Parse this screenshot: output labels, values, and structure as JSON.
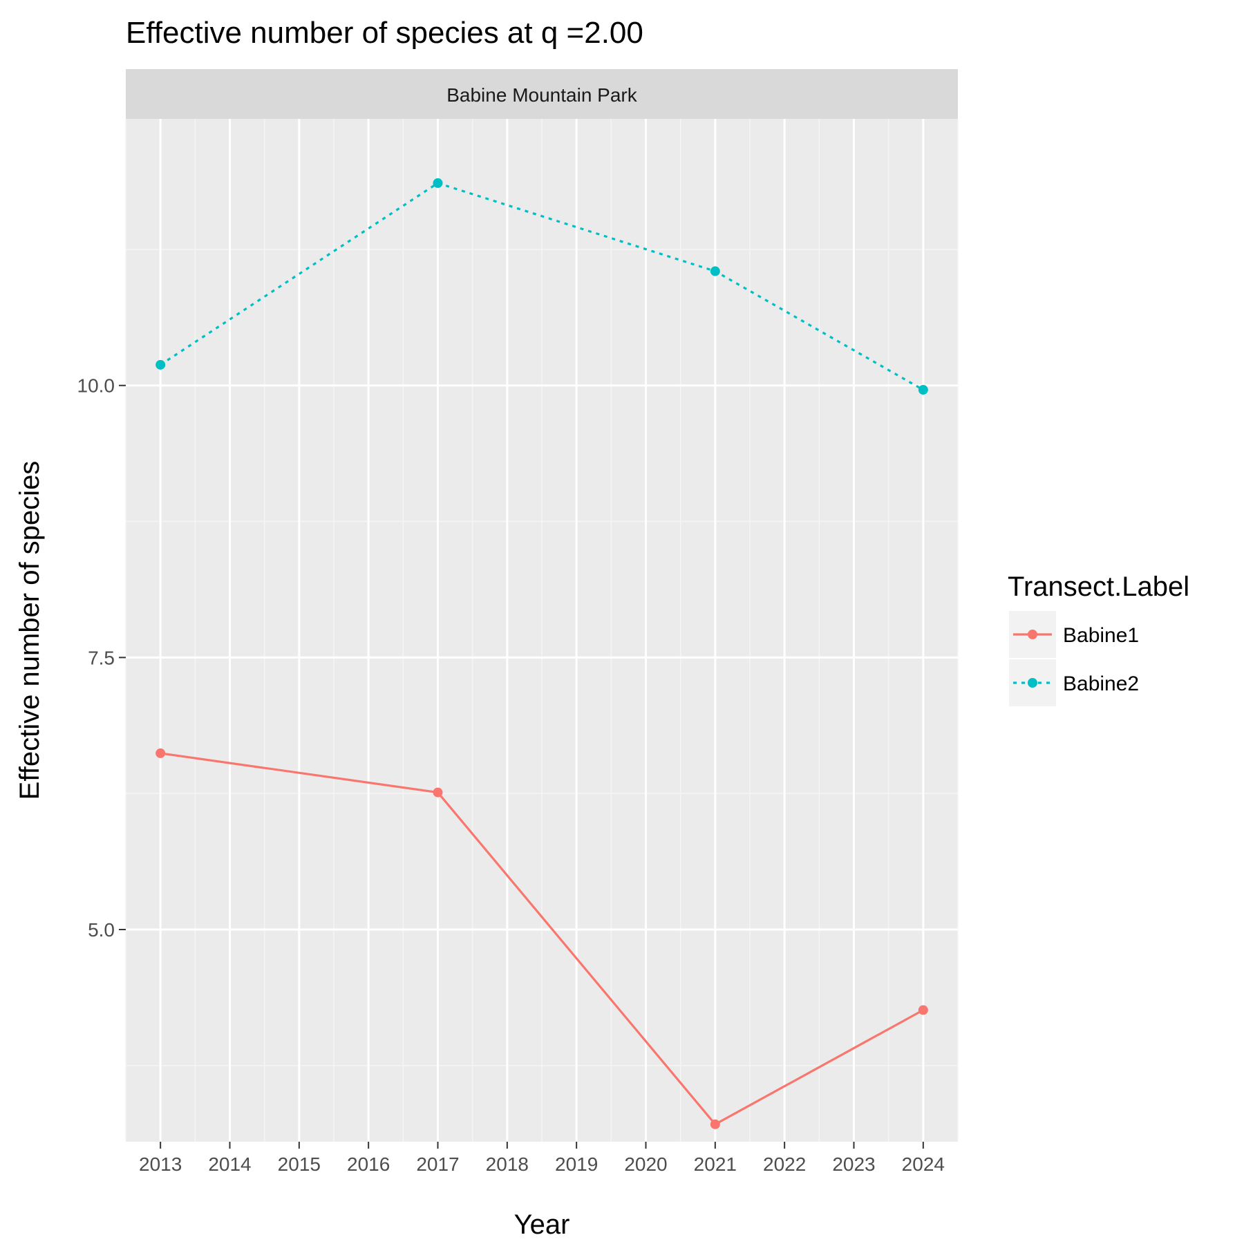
{
  "chart_data": {
    "type": "line",
    "title": "Effective number of species at q =2.00",
    "facet_label": "Babine Mountain Park",
    "xlabel": "Year",
    "ylabel": "Effective number of species",
    "x_ticks": [
      "2013",
      "2014",
      "2015",
      "2016",
      "2017",
      "2018",
      "2019",
      "2020",
      "2021",
      "2022",
      "2023",
      "2024"
    ],
    "y_ticks": [
      "5.0",
      "7.5",
      "10.0"
    ],
    "xlim": [
      2012.5,
      2024.5
    ],
    "ylim": [
      3.05,
      12.45
    ],
    "grid": true,
    "legend_title": "Transect.Label",
    "legend_position": "right",
    "series": [
      {
        "name": "Babine1",
        "color": "#F8766D",
        "line_style": "solid",
        "x": [
          2013,
          2017,
          2021,
          2024
        ],
        "y": [
          6.62,
          6.26,
          3.21,
          4.26
        ]
      },
      {
        "name": "Babine2",
        "color": "#00BFC4",
        "line_style": "dotted",
        "x": [
          2013,
          2017,
          2021,
          2024
        ],
        "y": [
          10.19,
          11.86,
          11.05,
          9.96
        ]
      }
    ]
  }
}
